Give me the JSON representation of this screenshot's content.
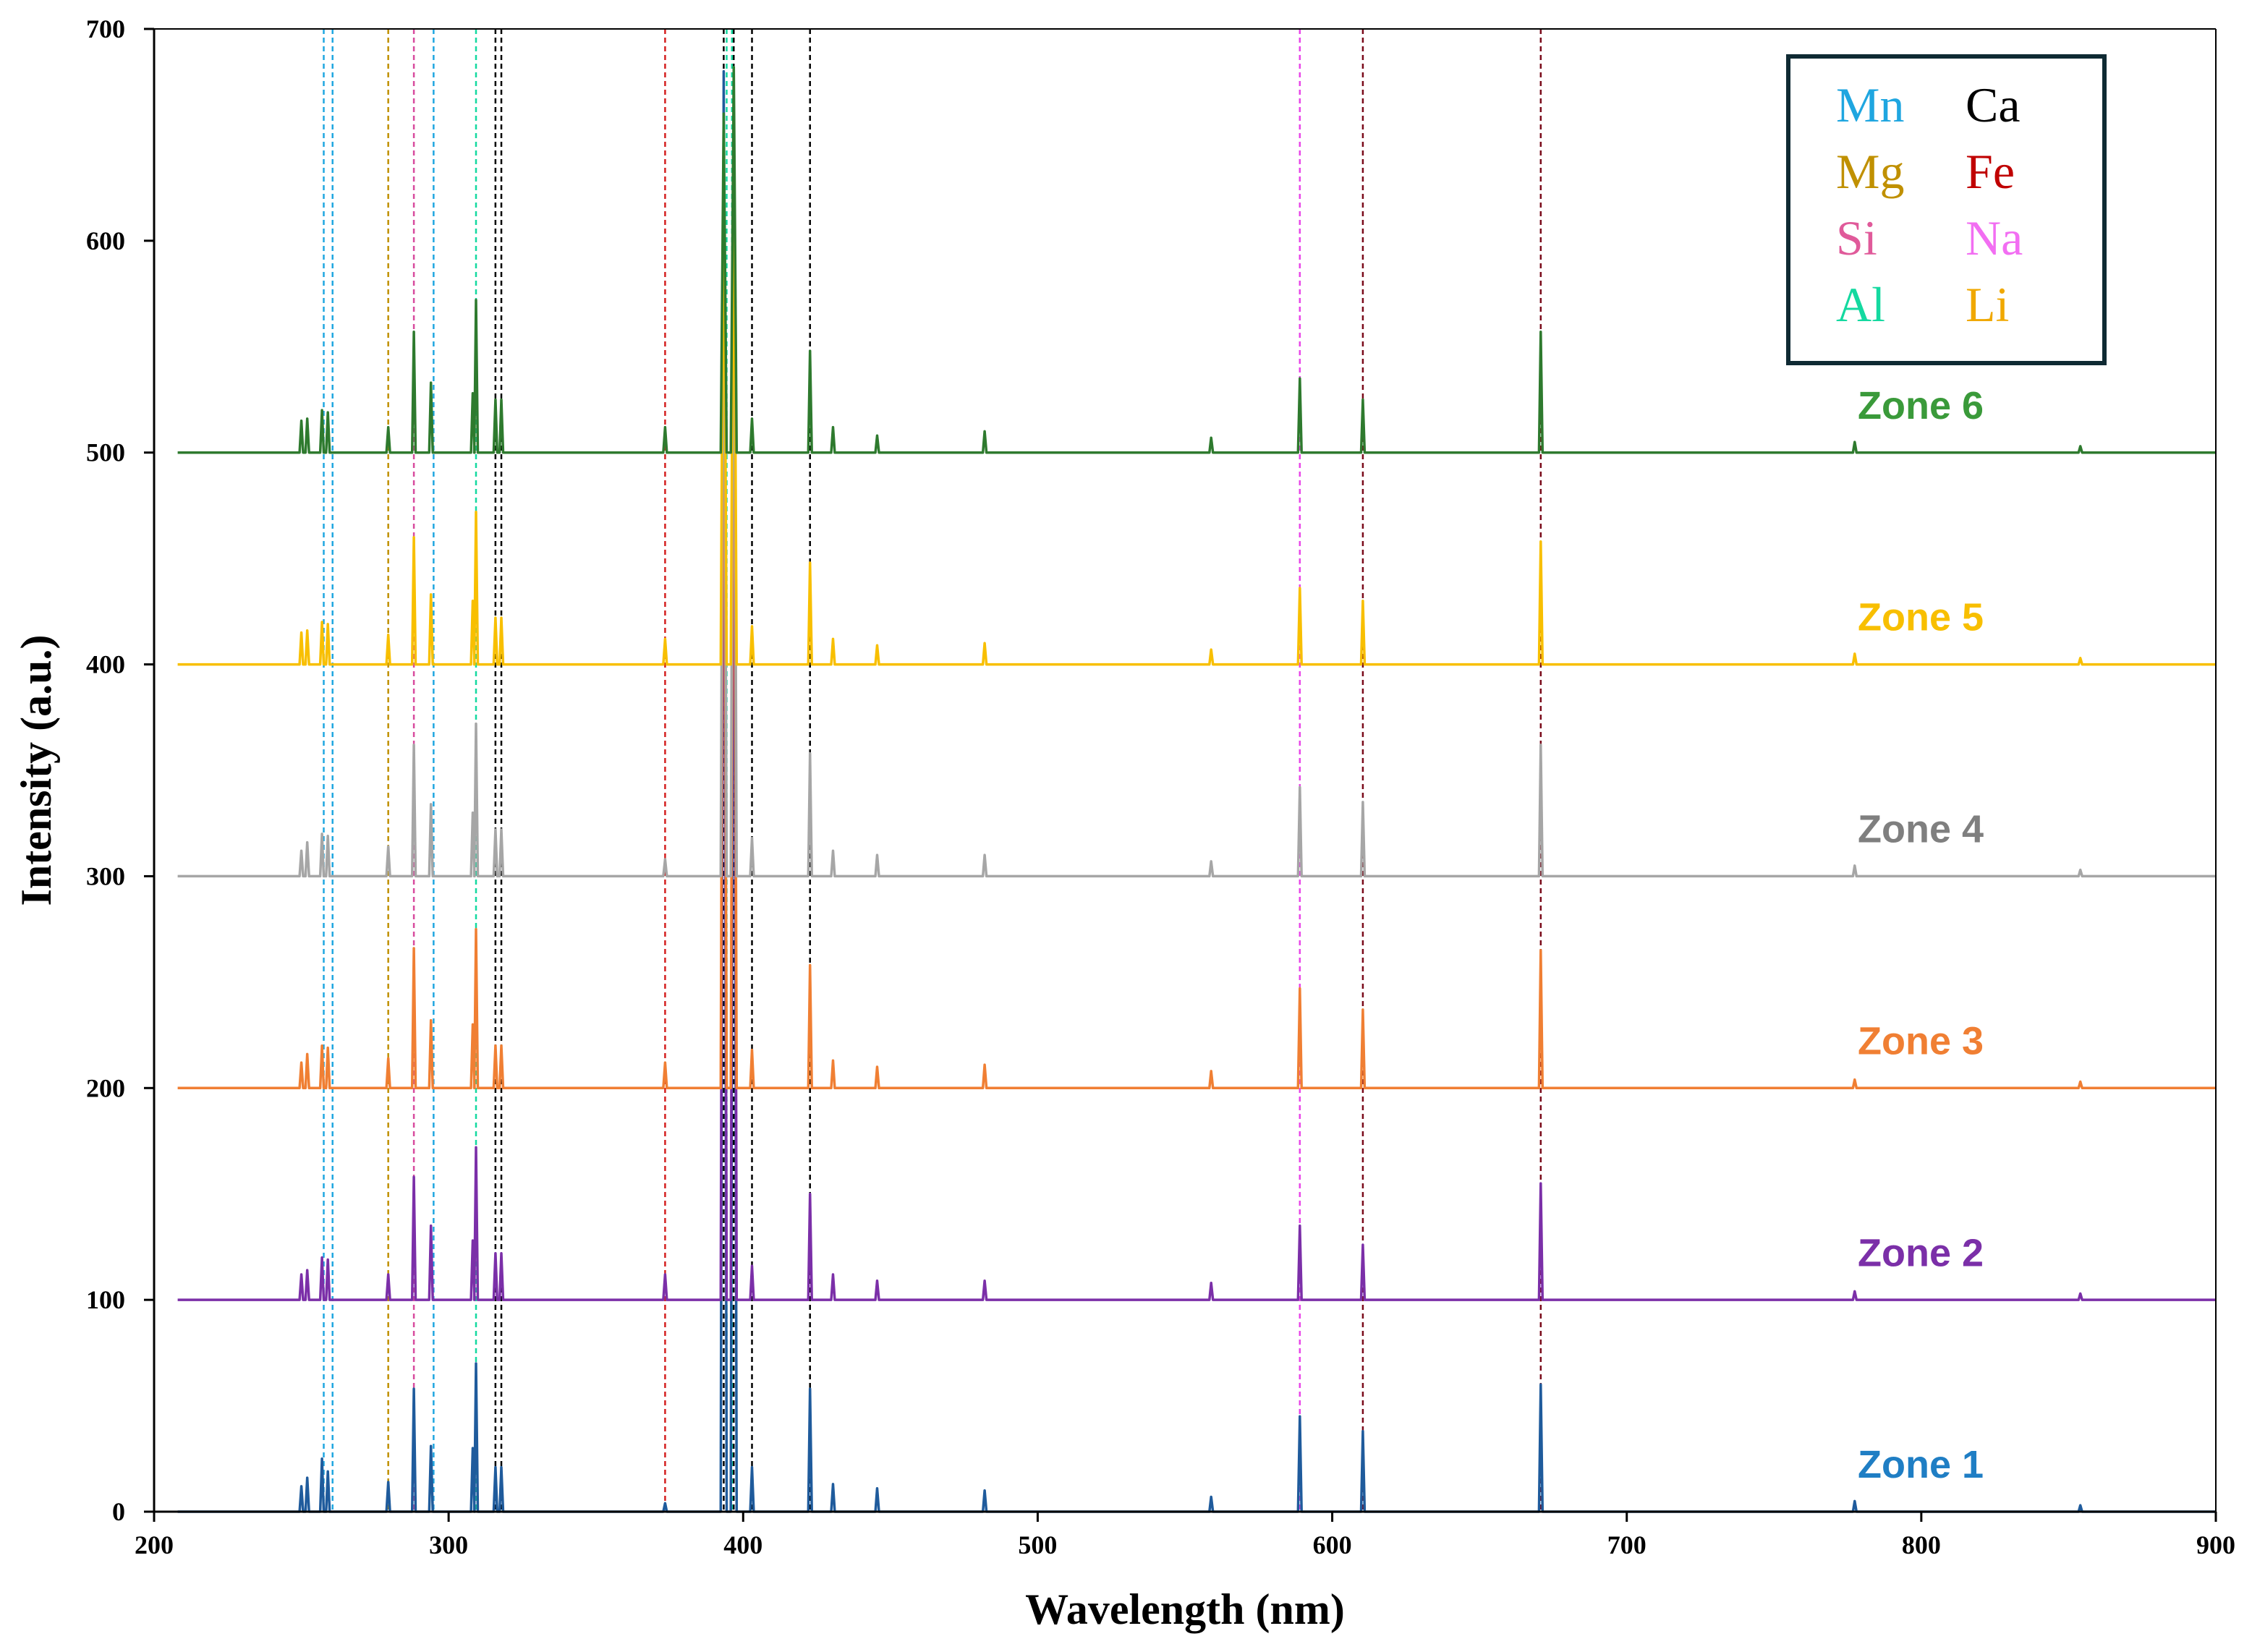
{
  "chart_data": {
    "type": "line",
    "title": "",
    "xlabel": "Wavelength (nm)",
    "ylabel": "Intensity (a.u.)",
    "xlim": [
      200,
      900
    ],
    "ylim": [
      0,
      700
    ],
    "x_ticks": [
      200,
      300,
      400,
      500,
      600,
      700,
      800,
      900
    ],
    "y_ticks": [
      0,
      100,
      200,
      300,
      400,
      500,
      600,
      700
    ],
    "x_tick_labels": [
      "200",
      "300",
      "400",
      "500",
      "600",
      "700",
      "800",
      "900"
    ],
    "y_tick_labels": [
      "0",
      "100",
      "200",
      "300",
      "400",
      "500",
      "600",
      "700"
    ],
    "grid": false,
    "data_range_x": [
      208,
      900
    ],
    "series": [
      {
        "name": "Zone 1",
        "label": "Zone 1",
        "offset": 0,
        "color": "#1f5b9c",
        "label_color": "#1f7ec4",
        "peaks": [
          [
            250,
            12
          ],
          [
            252,
            16
          ],
          [
            257,
            25
          ],
          [
            259,
            19
          ],
          [
            279.5,
            14
          ],
          [
            288.2,
            58
          ],
          [
            294,
            31
          ],
          [
            308.2,
            30
          ],
          [
            309.3,
            70
          ],
          [
            315.9,
            21
          ],
          [
            317.9,
            21
          ],
          [
            373.5,
            4
          ],
          [
            393.4,
            680
          ],
          [
            396.8,
            620
          ],
          [
            403,
            21
          ],
          [
            422.7,
            58
          ],
          [
            430.5,
            13
          ],
          [
            445.5,
            11
          ],
          [
            482,
            10
          ],
          [
            558.9,
            7
          ],
          [
            589,
            45
          ],
          [
            610.4,
            38
          ],
          [
            670.8,
            60
          ],
          [
            777.4,
            5
          ],
          [
            854,
            3
          ]
        ]
      },
      {
        "name": "Zone 2",
        "label": "Zone 2",
        "offset": 100,
        "color": "#7b2fa8",
        "label_color": "#7b2fa8",
        "peaks": [
          [
            250,
            12
          ],
          [
            252,
            14
          ],
          [
            257,
            20
          ],
          [
            259,
            19
          ],
          [
            279.5,
            12
          ],
          [
            288.2,
            58
          ],
          [
            294,
            35
          ],
          [
            308.2,
            28
          ],
          [
            309.3,
            72
          ],
          [
            315.9,
            22
          ],
          [
            317.9,
            22
          ],
          [
            373.5,
            12
          ],
          [
            393.4,
            520
          ],
          [
            396.8,
            520
          ],
          [
            403,
            16
          ],
          [
            422.7,
            50
          ],
          [
            430.5,
            12
          ],
          [
            445.5,
            9
          ],
          [
            482,
            9
          ],
          [
            558.9,
            8
          ],
          [
            589,
            35
          ],
          [
            610.4,
            26
          ],
          [
            670.8,
            55
          ],
          [
            777.4,
            4
          ],
          [
            854,
            3
          ]
        ]
      },
      {
        "name": "Zone 3",
        "label": "Zone 3",
        "offset": 200,
        "color": "#f07f33",
        "label_color": "#f07f33",
        "peaks": [
          [
            250,
            12
          ],
          [
            252,
            16
          ],
          [
            257,
            20
          ],
          [
            259,
            19
          ],
          [
            279.5,
            14
          ],
          [
            288.2,
            66
          ],
          [
            294,
            32
          ],
          [
            308.2,
            30
          ],
          [
            309.3,
            75
          ],
          [
            315.9,
            20
          ],
          [
            317.9,
            20
          ],
          [
            373.5,
            12
          ],
          [
            393.4,
            430
          ],
          [
            396.8,
            430
          ],
          [
            403,
            18
          ],
          [
            422.7,
            58
          ],
          [
            430.5,
            13
          ],
          [
            445.5,
            10
          ],
          [
            482,
            11
          ],
          [
            558.9,
            8
          ],
          [
            589,
            47
          ],
          [
            610.4,
            37
          ],
          [
            670.8,
            65
          ],
          [
            777.4,
            4
          ],
          [
            854,
            3
          ]
        ]
      },
      {
        "name": "Zone 4",
        "label": "Zone 4",
        "offset": 300,
        "color": "#a6a6a6",
        "label_color": "#7f7f7f",
        "peaks": [
          [
            250,
            12
          ],
          [
            252,
            16
          ],
          [
            257,
            20
          ],
          [
            259,
            19
          ],
          [
            279.5,
            14
          ],
          [
            288.2,
            62
          ],
          [
            294,
            34
          ],
          [
            308.2,
            30
          ],
          [
            309.3,
            72
          ],
          [
            315.9,
            22
          ],
          [
            317.9,
            22
          ],
          [
            373.5,
            8
          ],
          [
            393.4,
            350
          ],
          [
            396.8,
            350
          ],
          [
            403,
            18
          ],
          [
            422.7,
            58
          ],
          [
            430.5,
            12
          ],
          [
            445.5,
            10
          ],
          [
            482,
            10
          ],
          [
            558.9,
            7
          ],
          [
            589,
            42
          ],
          [
            610.4,
            35
          ],
          [
            670.8,
            62
          ],
          [
            777.4,
            5
          ],
          [
            854,
            3
          ]
        ]
      },
      {
        "name": "Zone 5",
        "label": "Zone 5",
        "offset": 400,
        "color": "#f8bf00",
        "label_color": "#f8bf00",
        "peaks": [
          [
            250,
            15
          ],
          [
            252,
            16
          ],
          [
            257,
            20
          ],
          [
            259,
            19
          ],
          [
            279.5,
            14
          ],
          [
            288.2,
            60
          ],
          [
            294,
            33
          ],
          [
            308.2,
            30
          ],
          [
            309.3,
            72
          ],
          [
            315.9,
            22
          ],
          [
            317.9,
            22
          ],
          [
            373.5,
            12
          ],
          [
            393.4,
            250
          ],
          [
            396.8,
            250
          ],
          [
            403,
            18
          ],
          [
            422.7,
            48
          ],
          [
            430.5,
            12
          ],
          [
            445.5,
            9
          ],
          [
            482,
            10
          ],
          [
            558.9,
            7
          ],
          [
            589,
            36
          ],
          [
            610.4,
            30
          ],
          [
            670.8,
            58
          ],
          [
            777.4,
            5
          ],
          [
            854,
            3
          ]
        ]
      },
      {
        "name": "Zone 6",
        "label": "Zone 6",
        "offset": 500,
        "color": "#2e7a2e",
        "label_color": "#3a9a3a",
        "peaks": [
          [
            250,
            15
          ],
          [
            252,
            16
          ],
          [
            257,
            20
          ],
          [
            259,
            19
          ],
          [
            279.5,
            12
          ],
          [
            288.2,
            57
          ],
          [
            294,
            33
          ],
          [
            308.2,
            28
          ],
          [
            309.3,
            72
          ],
          [
            315.9,
            25
          ],
          [
            317.9,
            25
          ],
          [
            373.5,
            12
          ],
          [
            393.4,
            160
          ],
          [
            396.8,
            182
          ],
          [
            403,
            16
          ],
          [
            422.7,
            48
          ],
          [
            430.5,
            12
          ],
          [
            445.5,
            8
          ],
          [
            482,
            10
          ],
          [
            558.9,
            7
          ],
          [
            589,
            35
          ],
          [
            610.4,
            25
          ],
          [
            670.8,
            57
          ],
          [
            777.4,
            5
          ],
          [
            854,
            3
          ]
        ]
      }
    ],
    "reference_lines": [
      {
        "element": "Mn",
        "x": 257.6,
        "color": "#1fa6e0"
      },
      {
        "element": "Mn",
        "x": 260.6,
        "color": "#1fa6e0"
      },
      {
        "element": "Mn",
        "x": 294.9,
        "color": "#1fa6e0"
      },
      {
        "element": "Mg",
        "x": 279.5,
        "color": "#c09000"
      },
      {
        "element": "Si",
        "x": 288.2,
        "color": "#d84b9e"
      },
      {
        "element": "Al",
        "x": 309.3,
        "color": "#14d9a0"
      },
      {
        "element": "Al",
        "x": 394.4,
        "color": "#14d9a0"
      },
      {
        "element": "Al",
        "x": 396.2,
        "color": "#14d9a0"
      },
      {
        "element": "Ca",
        "x": 315.9,
        "color": "#000000"
      },
      {
        "element": "Ca",
        "x": 317.9,
        "color": "#000000"
      },
      {
        "element": "Ca",
        "x": 393.4,
        "color": "#000000"
      },
      {
        "element": "Ca",
        "x": 396.8,
        "color": "#000000"
      },
      {
        "element": "Ca",
        "x": 403.0,
        "color": "#000000"
      },
      {
        "element": "Ca",
        "x": 422.7,
        "color": "#000000"
      },
      {
        "element": "Fe",
        "x": 373.5,
        "color": "#d42020"
      },
      {
        "element": "Na",
        "x": 589.0,
        "color": "#e845e8"
      },
      {
        "element": "Li",
        "x": 610.4,
        "color": "#7a0a1a"
      },
      {
        "element": "Li",
        "x": 670.8,
        "color": "#7a0a1a"
      }
    ],
    "legend": {
      "placement": "top-right",
      "entries": [
        {
          "label": "Mn",
          "color": "#1fa6e0"
        },
        {
          "label": "Mg",
          "color": "#c09000"
        },
        {
          "label": "Si",
          "color": "#e05a9a"
        },
        {
          "label": "Al",
          "color": "#14d9a0"
        },
        {
          "label": "Ca",
          "color": "#000000"
        },
        {
          "label": "Fe",
          "color": "#c00000"
        },
        {
          "label": "Na",
          "color": "#f26ef2"
        },
        {
          "label": "Li",
          "color": "#f0a800"
        }
      ]
    }
  }
}
